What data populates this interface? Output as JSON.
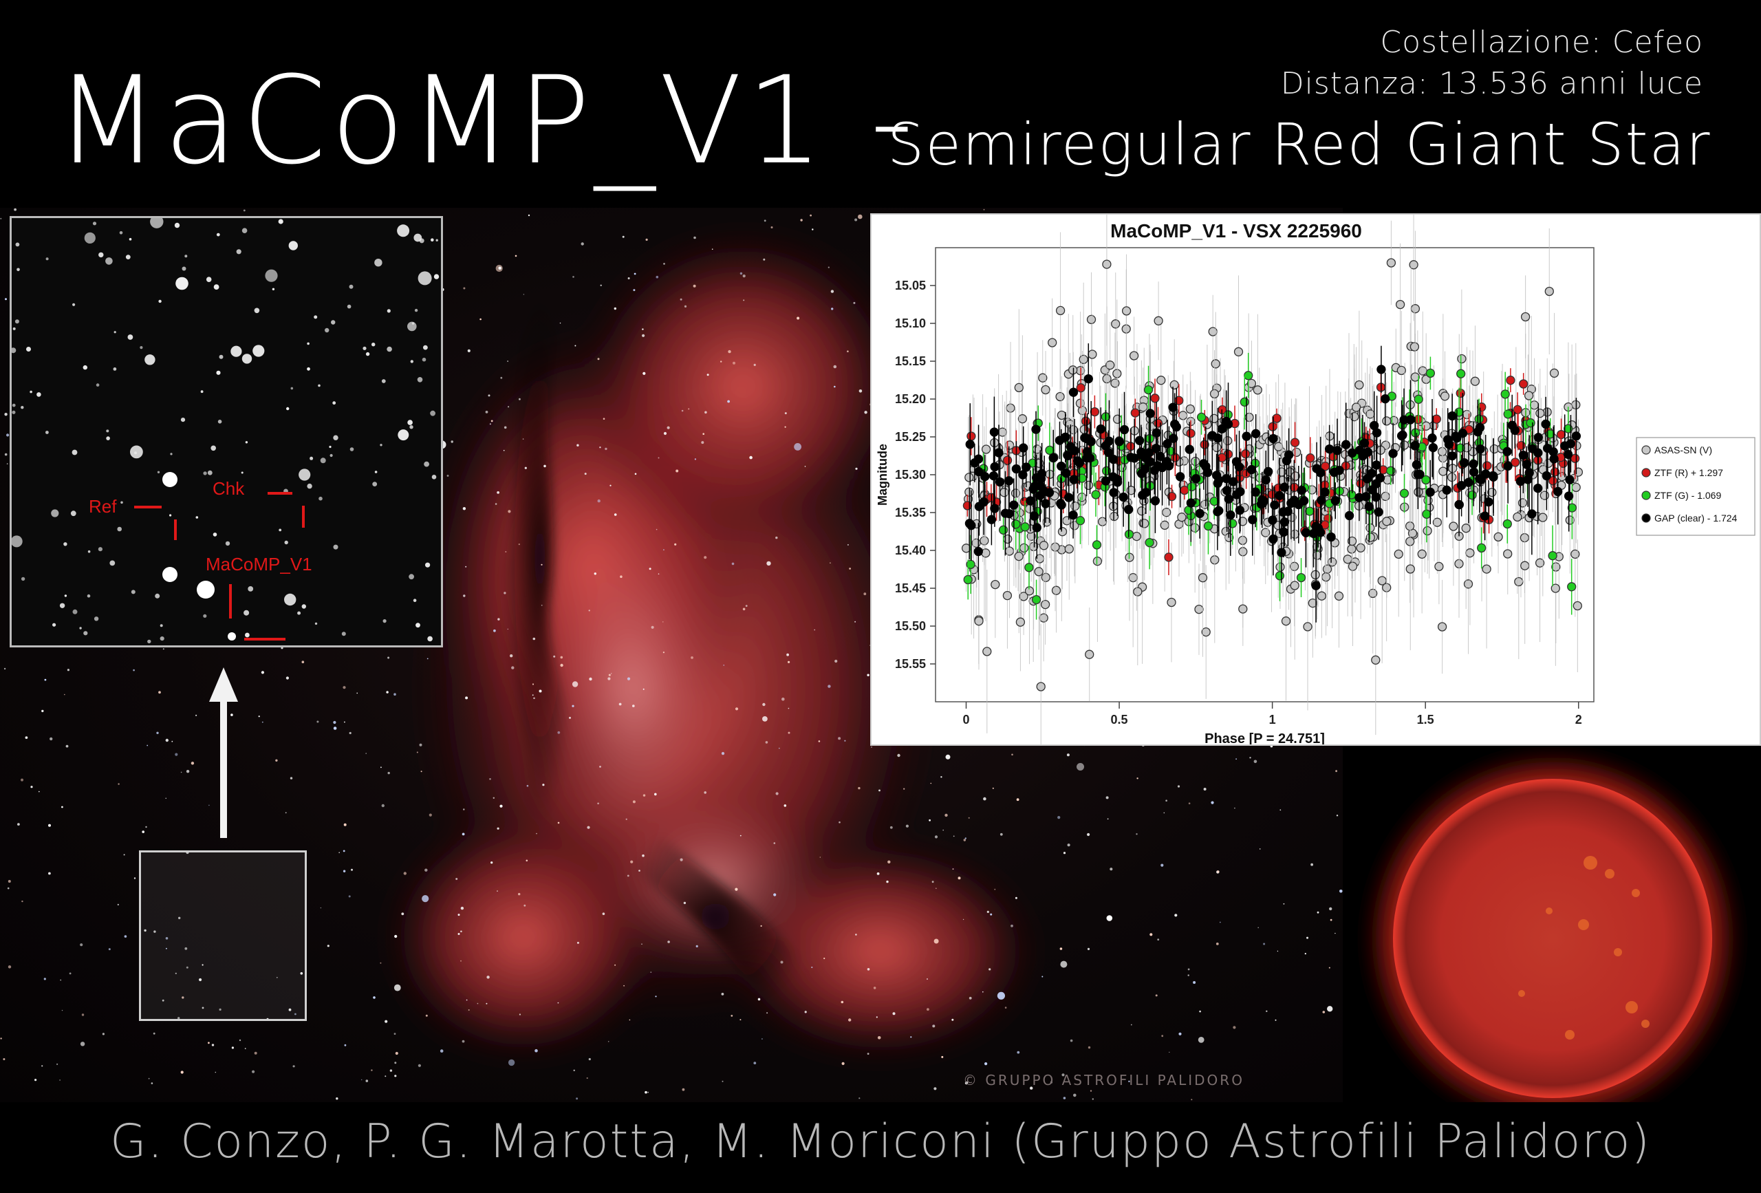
{
  "header": {
    "title": "MaCoMP_V1 -",
    "subtitle": "Semiregular Red Giant Star",
    "constellation": "Costellazione: Cefeo",
    "distance": "Distanza: 13.536 anni luce"
  },
  "finder": {
    "labels": {
      "ref": "Ref",
      "chk": "Chk",
      "target": "MaCoMP_V1"
    }
  },
  "copyright": "© GRUPPO ASTROFILI PALIDORO",
  "footer": {
    "credits": "G. Conzo, P. G. Marotta, M. Moriconi (Gruppo Astrofili Palidoro)"
  },
  "colors": {
    "nebula": "#b8302f",
    "finder_marker": "#e01818",
    "asassn": "#c8c8c8",
    "ztf_r": "#d11a1a",
    "ztf_g": "#22cc22",
    "gap": "#000000"
  },
  "chart_data": {
    "type": "scatter",
    "title": "MaCoMP_V1 - VSX 2225960",
    "xlabel": "Phase [P = 24.751]",
    "ylabel": "Magnitude",
    "xlim": [
      -0.1,
      2.05
    ],
    "ylim": [
      15.6,
      15.0
    ],
    "inverted_y": true,
    "x_ticks": [
      0,
      0.5,
      1,
      1.5,
      2
    ],
    "x_tick_labels": [
      "0",
      "0.5",
      "1",
      "1.5",
      "2"
    ],
    "y_ticks": [
      15.05,
      15.1,
      15.15,
      15.2,
      15.25,
      15.3,
      15.35,
      15.4,
      15.45,
      15.5,
      15.55
    ],
    "y_tick_labels": [
      "15.05",
      "15.10",
      "15.15",
      "15.20",
      "15.25",
      "15.30",
      "15.35",
      "15.40",
      "15.45",
      "15.50",
      "15.55"
    ],
    "legend_position": "right",
    "series": [
      {
        "name": "ASAS-SN (V)",
        "color": "#c8c8c8",
        "count": 520,
        "mean": 15.3,
        "spread": 0.09,
        "error": 0.08
      },
      {
        "name": "ZTF (R) + 1.297",
        "color": "#d11a1a",
        "count": 110,
        "mean": 15.28,
        "spread": 0.04,
        "error": 0.02
      },
      {
        "name": "ZTF (G) - 1.069",
        "color": "#22cc22",
        "count": 100,
        "mean": 15.3,
        "spread": 0.06,
        "error": 0.03
      },
      {
        "name": "GAP (clear) - 1.724",
        "color": "#000000",
        "count": 260,
        "mean": 15.3,
        "spread": 0.04,
        "error": 0.04
      }
    ]
  }
}
